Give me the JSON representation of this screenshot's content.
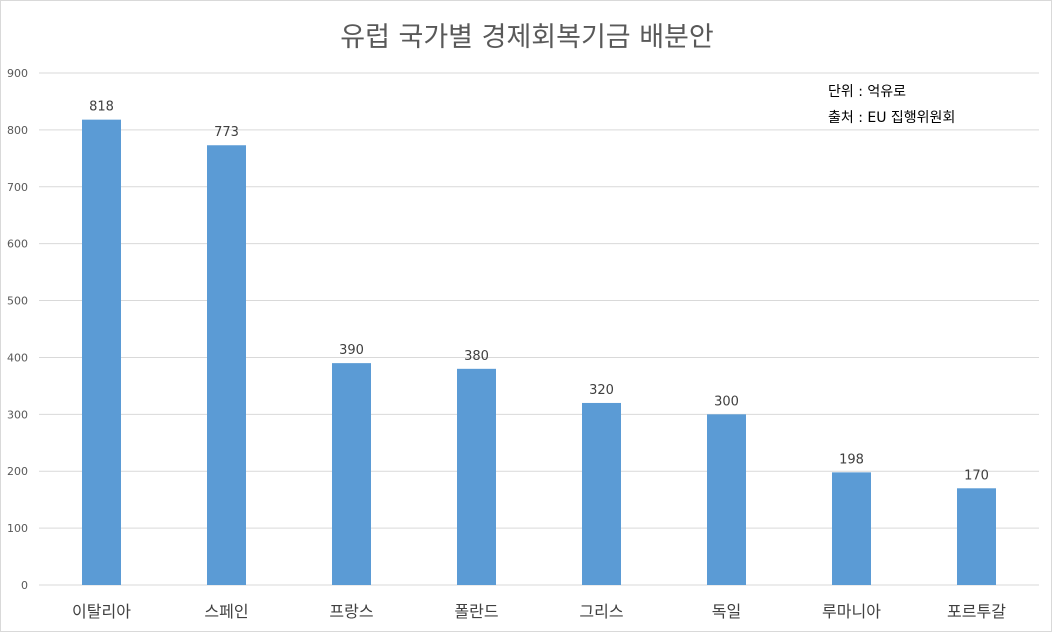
{
  "chart_data": {
    "type": "bar",
    "title": "유럽 국가별 경제회복기금 배분안",
    "notes": [
      "단위 : 억유로",
      "출처 : EU 집행위원회"
    ],
    "categories": [
      "이탈리아",
      "스페인",
      "프랑스",
      "폴란드",
      "그리스",
      "독일",
      "루마니아",
      "포르투갈"
    ],
    "values": [
      818,
      773,
      390,
      380,
      320,
      300,
      198,
      170
    ],
    "xlabel": "",
    "ylabel": "",
    "ylim": [
      0,
      900
    ],
    "yticks": [
      0,
      100,
      200,
      300,
      400,
      500,
      600,
      700,
      800,
      900
    ],
    "grid": true,
    "legend": "none",
    "bar_color": "#5b9bd5"
  }
}
